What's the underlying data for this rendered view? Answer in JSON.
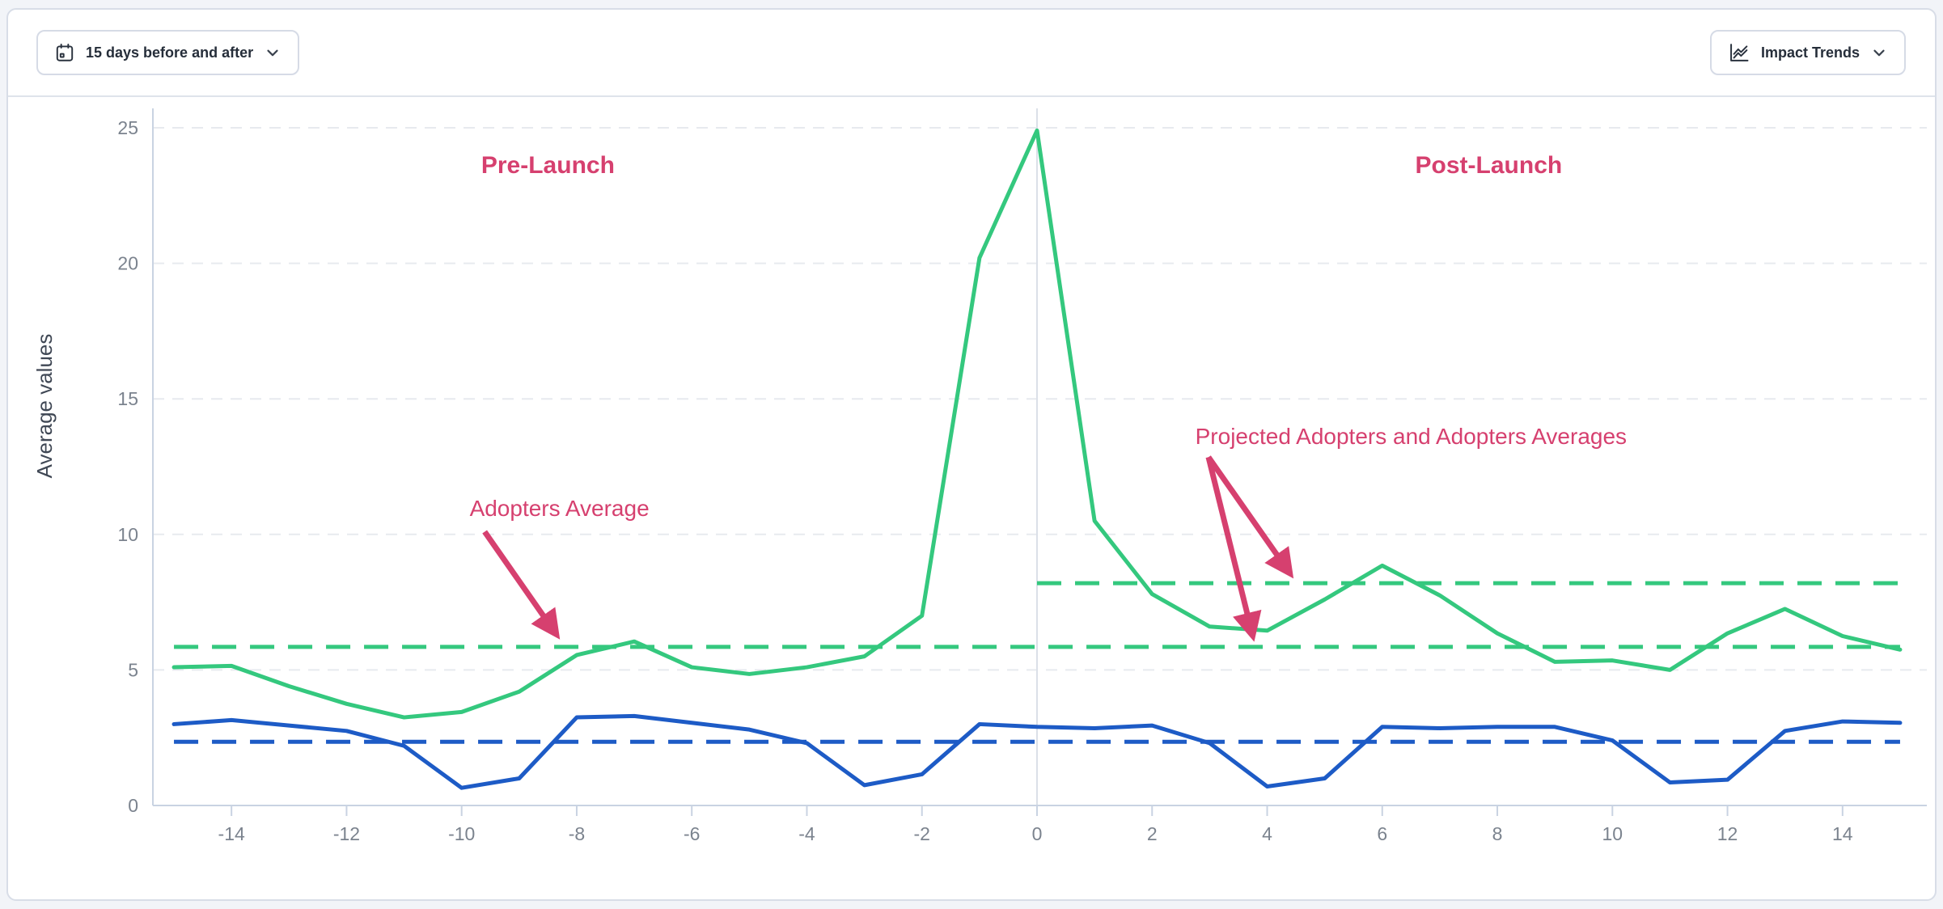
{
  "toolbar": {
    "date_range_button": {
      "label": "15 days before and after",
      "icon": "calendar-icon"
    },
    "trends_button": {
      "label": "Impact Trends",
      "icon": "trend-chart-icon"
    }
  },
  "chart_data": {
    "type": "line",
    "title": "",
    "xlabel": "",
    "ylabel": "Average values",
    "xlim": [
      -15,
      15
    ],
    "ylim": [
      0,
      25
    ],
    "grid": "horizontal-dashed",
    "legend_position": "none",
    "x_ticks": [
      -14,
      -12,
      -10,
      -8,
      -6,
      -4,
      -2,
      0,
      2,
      4,
      6,
      8,
      10,
      12,
      14
    ],
    "y_ticks": [
      0,
      5,
      10,
      15,
      20,
      25
    ],
    "x": [
      -15,
      -14,
      -13,
      -12,
      -11,
      -10,
      -9,
      -8,
      -7,
      -6,
      -5,
      -4,
      -3,
      -2,
      -1,
      0,
      1,
      2,
      3,
      4,
      5,
      6,
      7,
      8,
      9,
      10,
      11,
      12,
      13,
      14,
      15
    ],
    "series": [
      {
        "name": "Adopters",
        "color": "#34c87e",
        "style": "solid",
        "values": [
          5.1,
          5.15,
          4.4,
          3.75,
          3.25,
          3.45,
          4.2,
          5.55,
          6.05,
          5.1,
          4.85,
          5.1,
          5.5,
          7.0,
          20.2,
          24.9,
          10.5,
          7.8,
          6.6,
          6.45,
          7.6,
          8.85,
          7.75,
          6.35,
          5.3,
          5.35,
          5.0,
          6.35,
          7.25,
          6.25,
          5.75
        ]
      },
      {
        "name": "Projected Adopters",
        "color": "#1d5bc6",
        "style": "solid",
        "values": [
          3.0,
          3.15,
          2.95,
          2.75,
          2.2,
          0.65,
          1.0,
          3.25,
          3.3,
          3.05,
          2.8,
          2.3,
          0.75,
          1.15,
          3.0,
          2.9,
          2.85,
          2.95,
          2.3,
          0.7,
          1.0,
          2.9,
          2.85,
          2.9,
          2.9,
          2.4,
          0.85,
          0.95,
          2.75,
          3.1,
          3.05
        ]
      }
    ],
    "reference_lines": [
      {
        "name": "adopters-average-pre",
        "color": "#34c87e",
        "style": "dashed",
        "value": 5.85,
        "x_from": -15,
        "x_to": 15
      },
      {
        "name": "adopters-average-post",
        "color": "#34c87e",
        "style": "dashed",
        "value": 8.2,
        "x_from": 0,
        "x_to": 15
      },
      {
        "name": "projected-adopters-average",
        "color": "#1d5bc6",
        "style": "dashed",
        "value": 2.35,
        "x_from": -15,
        "x_to": 15
      }
    ],
    "vertical_reference_line": {
      "x": 0
    },
    "annotations": [
      {
        "id": "pre-launch-label",
        "text": "Pre-Launch",
        "x": -8.5,
        "y": 23.6,
        "bold": true,
        "arrows": []
      },
      {
        "id": "post-launch-label",
        "text": "Post-Launch",
        "x": 7.85,
        "y": 23.6,
        "bold": true,
        "arrows": []
      },
      {
        "id": "adopters-average-label",
        "text": "Adopters Average",
        "x": -8.3,
        "y": 10.95,
        "bold": false,
        "arrows": [
          {
            "x1": -9.6,
            "y1": 10.1,
            "x2": -8.35,
            "y2": 6.3
          }
        ]
      },
      {
        "id": "projected-adopters-average-label",
        "text": "Projected Adopters and Adopters Averages",
        "x": 6.5,
        "y": 13.6,
        "bold": false,
        "arrows": [
          {
            "x1": 2.98,
            "y1": 12.85,
            "x2": 4.4,
            "y2": 8.55
          },
          {
            "x1": 2.98,
            "y1": 12.85,
            "x2": 3.75,
            "y2": 6.25
          }
        ]
      }
    ],
    "colors": {
      "annotation": "#d6406f",
      "grid": "#e7eaef",
      "axis": "#c9d3e2",
      "zero_line": "#dbe0e8",
      "tick_label": "#7b838e",
      "axis_title": "#3f4754"
    }
  }
}
